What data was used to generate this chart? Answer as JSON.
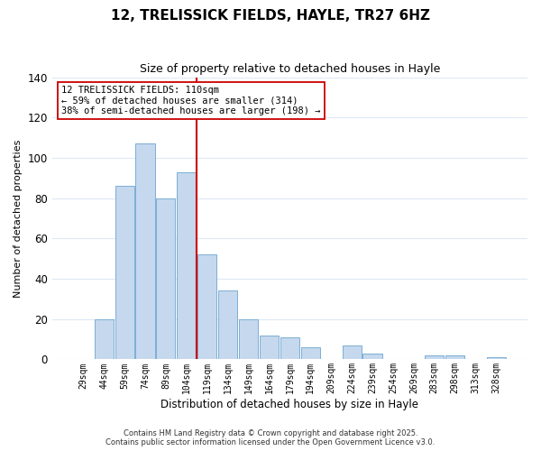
{
  "title": "12, TRELISSICK FIELDS, HAYLE, TR27 6HZ",
  "subtitle": "Size of property relative to detached houses in Hayle",
  "xlabel": "Distribution of detached houses by size in Hayle",
  "ylabel": "Number of detached properties",
  "bar_labels": [
    "29sqm",
    "44sqm",
    "59sqm",
    "74sqm",
    "89sqm",
    "104sqm",
    "119sqm",
    "134sqm",
    "149sqm",
    "164sqm",
    "179sqm",
    "194sqm",
    "209sqm",
    "224sqm",
    "239sqm",
    "254sqm",
    "269sqm",
    "283sqm",
    "298sqm",
    "313sqm",
    "328sqm"
  ],
  "bar_values": [
    0,
    20,
    86,
    107,
    80,
    93,
    52,
    34,
    20,
    12,
    11,
    6,
    0,
    7,
    3,
    0,
    0,
    2,
    2,
    0,
    1
  ],
  "bar_color": "#c5d8ee",
  "bar_edge_color": "#7bafd4",
  "ylim": [
    0,
    140
  ],
  "yticks": [
    0,
    20,
    40,
    60,
    80,
    100,
    120,
    140
  ],
  "vline_color": "#cc0000",
  "annotation_box_text": "12 TRELISSICK FIELDS: 110sqm\n← 59% of detached houses are smaller (314)\n38% of semi-detached houses are larger (198) →",
  "footer_line1": "Contains HM Land Registry data © Crown copyright and database right 2025.",
  "footer_line2": "Contains public sector information licensed under the Open Government Licence v3.0.",
  "background_color": "#ffffff",
  "grid_color": "#dce9f5"
}
